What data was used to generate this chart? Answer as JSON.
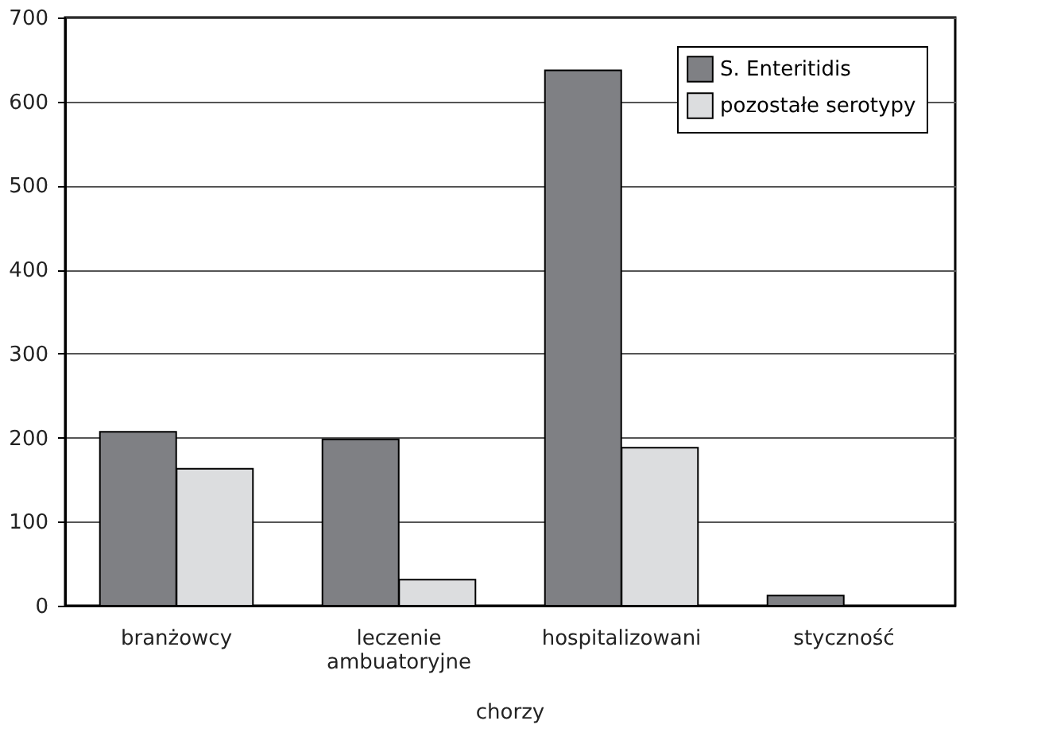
{
  "chart_data": {
    "type": "bar",
    "categories": [
      "branżowcy",
      "leczenie ambuatoryjne",
      "hospitalizowani",
      "styczność"
    ],
    "series": [
      {
        "name": "S. Enteritidis",
        "color": "#7f8084",
        "values": [
          207,
          198,
          637,
          12
        ]
      },
      {
        "name": "pozostałe serotypy",
        "color": "#dcdddf",
        "values": [
          163,
          31,
          188,
          null
        ]
      }
    ],
    "ylim": [
      0,
      700
    ],
    "yticks": [
      0,
      100,
      200,
      300,
      400,
      500,
      600,
      700
    ],
    "grid": "y",
    "legend": "top right",
    "annotations": [
      "chorzy"
    ]
  }
}
